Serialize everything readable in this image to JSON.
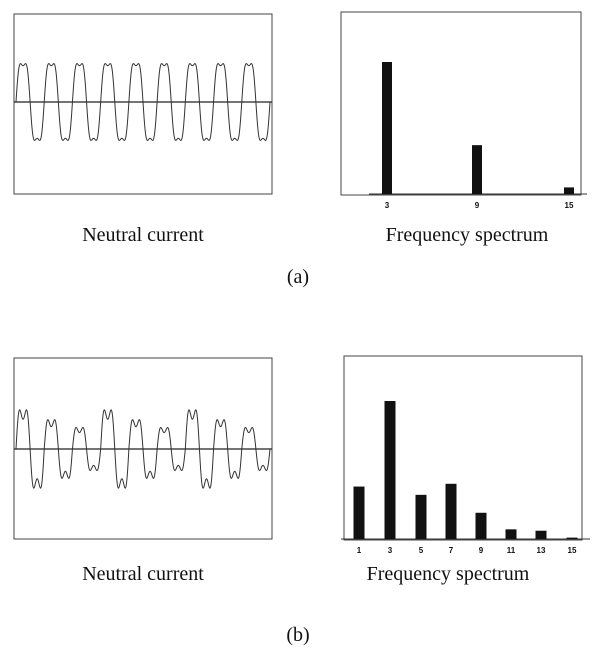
{
  "panels": [
    {
      "label": "(a)",
      "waveform_caption": "Neutral current",
      "spectrum_caption": "Frequency spectrum"
    },
    {
      "label": "(b)",
      "waveform_caption": "Neutral current",
      "spectrum_caption": "Frequency spectrum"
    }
  ],
  "chart_data": [
    {
      "type": "line",
      "title": "",
      "description_key": "waveform",
      "cycles": 9,
      "harmonics": [
        {
          "order": 1,
          "amplitude": 1.0
        },
        {
          "order": 3,
          "amplitude": 0.18
        }
      ],
      "ylim": [
        -1.4,
        1.4
      ]
    },
    {
      "type": "bar",
      "categories": [
        "3",
        "9",
        "15"
      ],
      "values": [
        100,
        37,
        5
      ],
      "ylim": [
        0,
        100
      ]
    },
    {
      "type": "line",
      "title": "",
      "description_key": "waveform",
      "cycles": 9,
      "harmonics": [
        {
          "order": 1,
          "amplitude": 1.0
        },
        {
          "order": 3,
          "amplitude": 0.3
        }
      ],
      "envelope": [
        1.0,
        0.75,
        0.55
      ],
      "ylim": [
        -1.6,
        1.6
      ]
    },
    {
      "type": "bar",
      "categories": [
        "1",
        "3",
        "5",
        "7",
        "9",
        "11",
        "13",
        "15"
      ],
      "values": [
        38,
        100,
        32,
        40,
        19,
        7,
        6,
        1
      ],
      "ylim": [
        0,
        100
      ]
    }
  ]
}
